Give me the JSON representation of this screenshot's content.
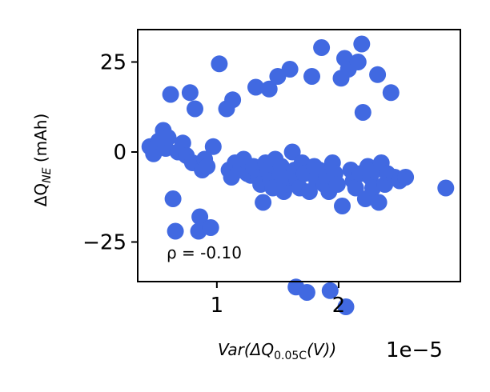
{
  "chart_data": {
    "type": "scatter",
    "title": "",
    "xlabel": "Var(ΔQ",
    "xlabel_sub": "0.05C",
    "xlabel_tail": "(V))",
    "x_offset_text": "1e−5",
    "ylabel": "ΔQ",
    "ylabel_sub": "NE",
    "ylabel_tail": " (mAh)",
    "xlim": [
      0.35,
      3.0
    ],
    "ylim": [
      -36,
      34
    ],
    "x_ticks": [
      1,
      2
    ],
    "x_tick_labels": [
      "1",
      "2"
    ],
    "y_ticks": [
      -25,
      0,
      25
    ],
    "y_tick_labels": [
      "−25",
      "0",
      "25"
    ],
    "grid": false,
    "marker_color": "#4169e1",
    "annotation": "ρ = -0.10",
    "series": [
      {
        "points": [
          [
            0.45,
            1.5
          ],
          [
            0.48,
            -0.5
          ],
          [
            0.52,
            3
          ],
          [
            0.56,
            6
          ],
          [
            0.58,
            1
          ],
          [
            0.6,
            4
          ],
          [
            0.62,
            16
          ],
          [
            0.64,
            -13
          ],
          [
            0.66,
            -22
          ],
          [
            0.68,
            0
          ],
          [
            0.72,
            2.5
          ],
          [
            0.75,
            -1
          ],
          [
            0.78,
            16.5
          ],
          [
            0.8,
            -3
          ],
          [
            0.82,
            12
          ],
          [
            0.85,
            -22
          ],
          [
            0.86,
            -18
          ],
          [
            0.88,
            -5
          ],
          [
            0.9,
            -2
          ],
          [
            0.92,
            -4
          ],
          [
            0.95,
            -21
          ],
          [
            0.97,
            1.5
          ],
          [
            1.02,
            24.5
          ],
          [
            1.08,
            12
          ],
          [
            1.1,
            -5
          ],
          [
            1.12,
            -7
          ],
          [
            1.13,
            14.5
          ],
          [
            1.15,
            -3
          ],
          [
            1.18,
            -5
          ],
          [
            1.2,
            -4
          ],
          [
            1.22,
            -2
          ],
          [
            1.25,
            -6
          ],
          [
            1.28,
            -6.5
          ],
          [
            1.3,
            -4
          ],
          [
            1.32,
            18
          ],
          [
            1.34,
            -7
          ],
          [
            1.36,
            -9
          ],
          [
            1.38,
            -14
          ],
          [
            1.4,
            -3
          ],
          [
            1.42,
            -5
          ],
          [
            1.43,
            17.5
          ],
          [
            1.44,
            -8
          ],
          [
            1.46,
            -10
          ],
          [
            1.48,
            -2
          ],
          [
            1.5,
            21
          ],
          [
            1.52,
            -6
          ],
          [
            1.53,
            -4
          ],
          [
            1.55,
            -11
          ],
          [
            1.56,
            -9
          ],
          [
            1.58,
            -7
          ],
          [
            1.6,
            23
          ],
          [
            1.62,
            0
          ],
          [
            1.64,
            -5
          ],
          [
            1.65,
            -37.5
          ],
          [
            1.66,
            -8
          ],
          [
            1.68,
            -10
          ],
          [
            1.7,
            -3
          ],
          [
            1.72,
            -6
          ],
          [
            1.74,
            -39
          ],
          [
            1.76,
            -11
          ],
          [
            1.78,
            21
          ],
          [
            1.8,
            -4
          ],
          [
            1.82,
            -8
          ],
          [
            1.84,
            -5
          ],
          [
            1.86,
            29
          ],
          [
            1.88,
            -9
          ],
          [
            1.9,
            -7
          ],
          [
            1.92,
            -11
          ],
          [
            1.93,
            -38.5
          ],
          [
            1.95,
            -3
          ],
          [
            1.97,
            -6
          ],
          [
            1.99,
            -9
          ],
          [
            2.02,
            20.5
          ],
          [
            2.03,
            -15
          ],
          [
            2.05,
            26
          ],
          [
            2.06,
            -43
          ],
          [
            2.08,
            23
          ],
          [
            2.1,
            -5
          ],
          [
            2.12,
            -8
          ],
          [
            2.14,
            -10
          ],
          [
            2.16,
            25
          ],
          [
            2.18,
            -6
          ],
          [
            2.19,
            30
          ],
          [
            2.2,
            11
          ],
          [
            2.22,
            -13
          ],
          [
            2.24,
            -4
          ],
          [
            2.26,
            -7
          ],
          [
            2.28,
            -10
          ],
          [
            2.3,
            -5
          ],
          [
            2.32,
            21.5
          ],
          [
            2.33,
            -14
          ],
          [
            2.35,
            -3
          ],
          [
            2.38,
            -9
          ],
          [
            2.4,
            -6
          ],
          [
            2.43,
            16.5
          ],
          [
            2.46,
            -7
          ],
          [
            2.5,
            -8
          ],
          [
            2.55,
            -7
          ],
          [
            2.88,
            -10
          ]
        ]
      }
    ]
  }
}
